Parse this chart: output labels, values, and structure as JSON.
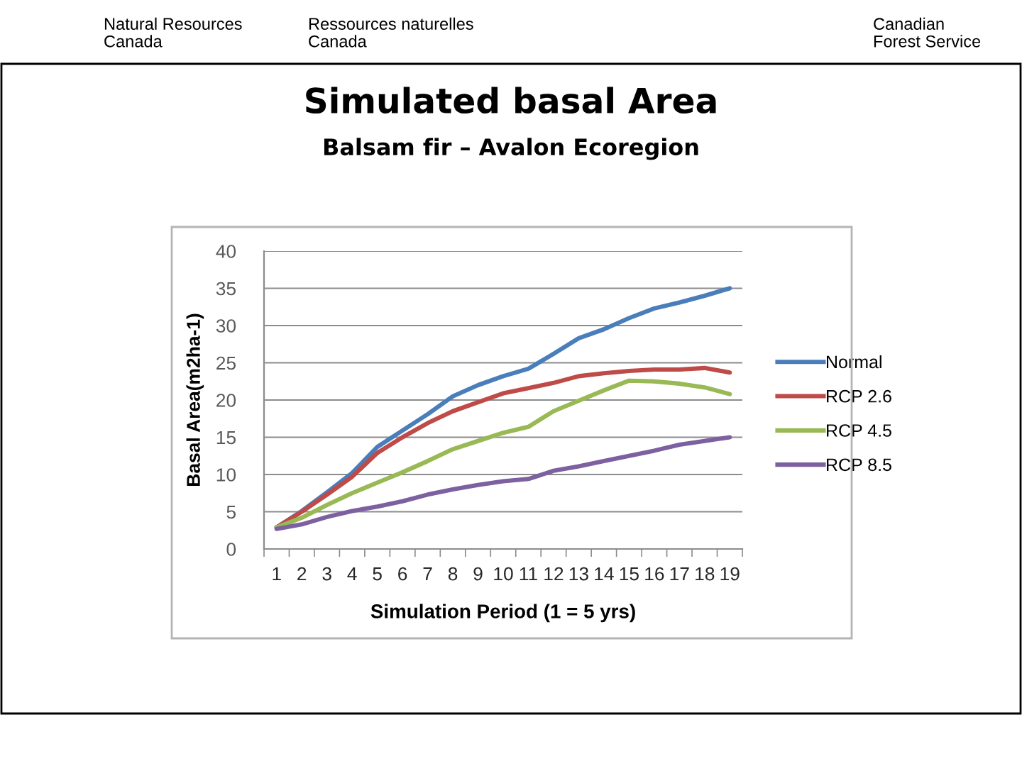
{
  "chart_data": {
    "type": "line",
    "title": "Simulated basal Area",
    "subtitle": "Balsam fir – Avalon Ecoregion",
    "xlabel": "Simulation Period (1 = 5 yrs)",
    "ylabel": "Basal Area(m2ha-1)",
    "annotations": [
      "Natural Resources\nCanada",
      "Ressources naturelles\nCanada",
      "Canadian\nForest Service"
    ],
    "categories": [
      "1",
      "2",
      "3",
      "4",
      "5",
      "6",
      "7",
      "8",
      "9",
      "10",
      "11",
      "12",
      "13",
      "14",
      "15",
      "16",
      "17",
      "18",
      "19"
    ],
    "series": [
      {
        "name": "Normal",
        "color": "#4a7ebb",
        "values": [
          2.9,
          5.1,
          7.6,
          10.2,
          13.7,
          15.9,
          18.1,
          20.5,
          22.0,
          23.2,
          24.2,
          26.2,
          28.3,
          29.5,
          31.0,
          32.3,
          33.1,
          34.0,
          35.0
        ]
      },
      {
        "name": "RCP 2.6",
        "color": "#be4b48",
        "values": [
          2.9,
          5.0,
          7.3,
          9.7,
          12.9,
          15.0,
          16.9,
          18.5,
          19.7,
          20.9,
          21.6,
          22.3,
          23.2,
          23.6,
          23.9,
          24.1,
          24.1,
          24.3,
          23.7
        ]
      },
      {
        "name": "RCP 4.5",
        "color": "#98b954",
        "values": [
          2.9,
          4.2,
          5.9,
          7.5,
          8.9,
          10.3,
          11.8,
          13.4,
          14.5,
          15.6,
          16.4,
          18.5,
          19.9,
          21.3,
          22.6,
          22.5,
          22.2,
          21.7,
          20.8
        ]
      },
      {
        "name": "RCP 8.5",
        "color": "#7d60a0",
        "values": [
          2.7,
          3.3,
          4.3,
          5.1,
          5.7,
          6.4,
          7.3,
          8.0,
          8.6,
          9.1,
          9.4,
          10.5,
          11.1,
          11.8,
          12.5,
          13.2,
          14.0,
          14.5,
          15.0
        ]
      }
    ],
    "ylim": [
      0,
      40
    ],
    "yticks": [
      0,
      5,
      10,
      15,
      20,
      25,
      30,
      35,
      40
    ],
    "grid": "y",
    "legend": "right"
  }
}
